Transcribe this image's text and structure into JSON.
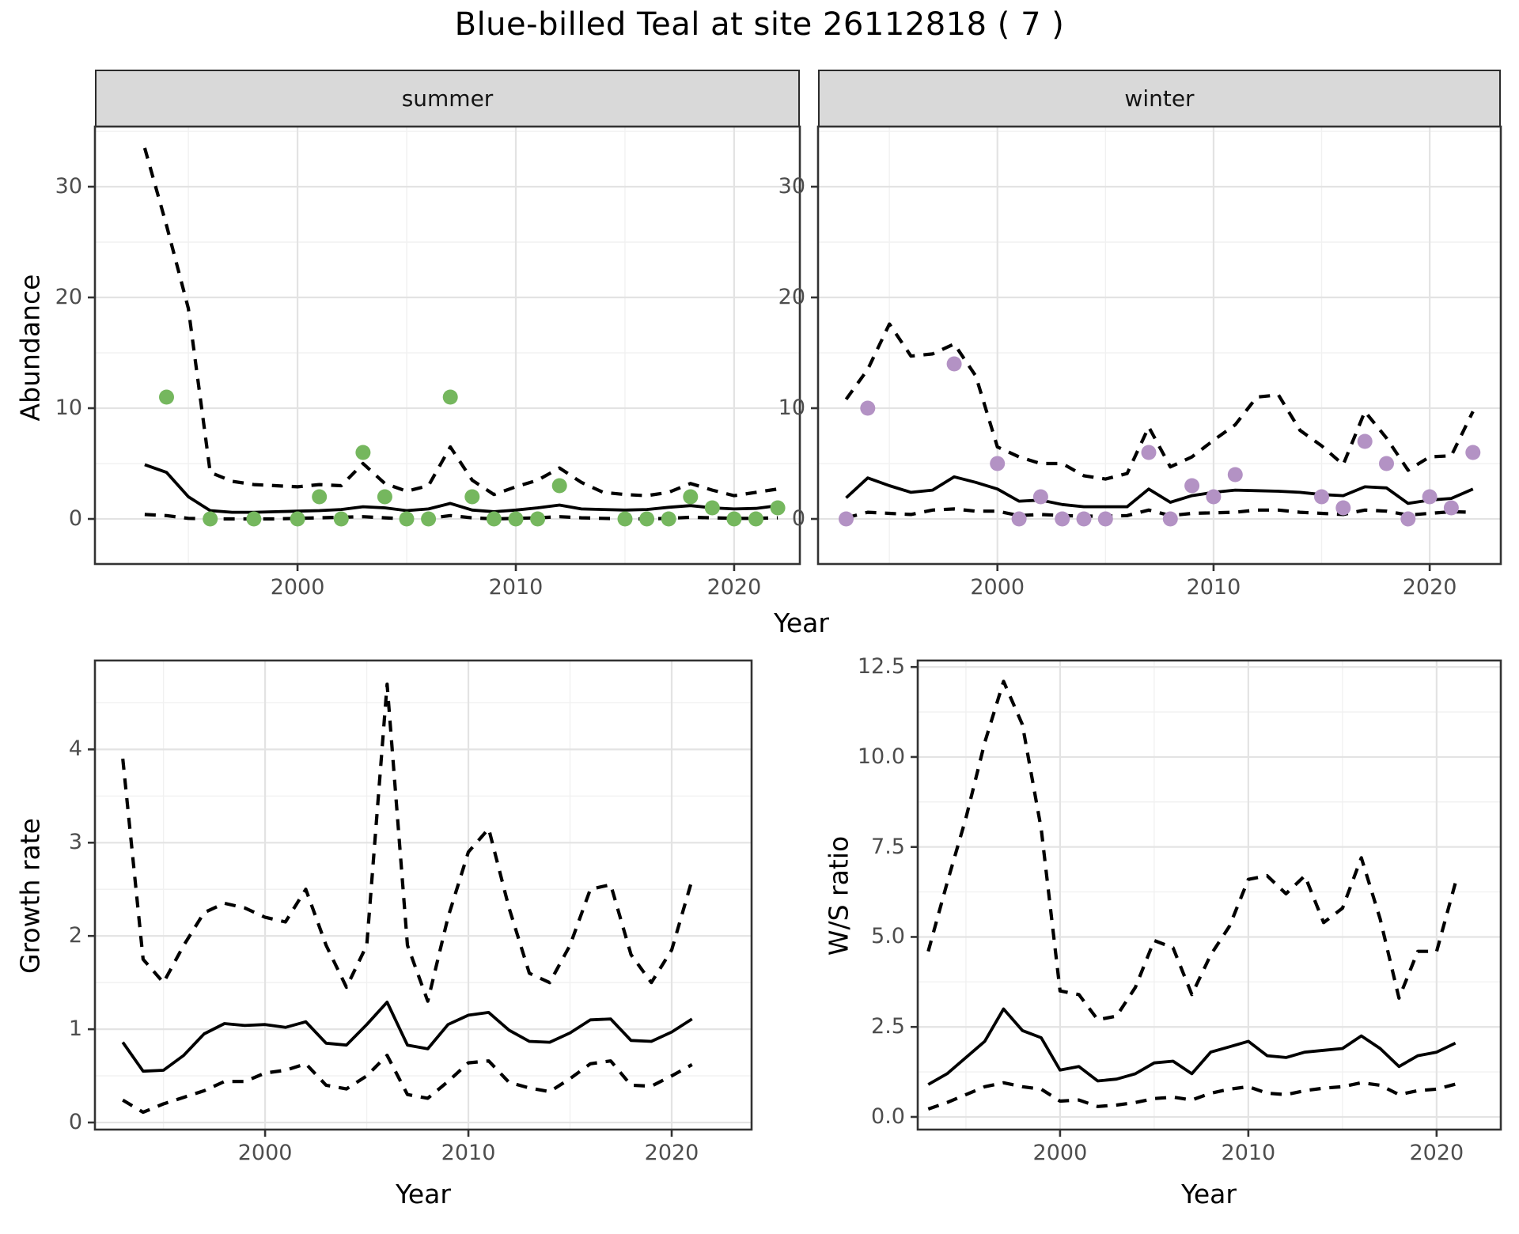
{
  "title": "Blue-billed Teal at site 26112818 ( 7 )",
  "facets": {
    "summer": "summer",
    "winter": "winter"
  },
  "axis_labels": {
    "abundance": "Abundance",
    "year_top": "Year",
    "year_growth": "Year",
    "year_ws": "Year",
    "growth_rate": "Growth rate",
    "ws_ratio": "W/S ratio"
  },
  "colors": {
    "summer_point": "#75b75e",
    "winter_point": "#b392c4",
    "line": "#000000",
    "strip_bg": "#d9d9d9",
    "grid_major": "#e3e3e3",
    "grid_minor": "#f1f1f1",
    "axis_text": "#4d4d4d",
    "panel_border": "#333333"
  },
  "chart_data": [
    {
      "id": "abundance-summer",
      "type": "line",
      "facet": "summer",
      "ylabel": "Abundance",
      "xlabel": "Year",
      "x": [
        1993,
        1994,
        1995,
        1996,
        1997,
        1998,
        1999,
        2000,
        2001,
        2002,
        2003,
        2004,
        2005,
        2006,
        2007,
        2008,
        2009,
        2010,
        2011,
        2012,
        2013,
        2014,
        2015,
        2016,
        2017,
        2018,
        2019,
        2020,
        2021,
        2022
      ],
      "series": [
        {
          "name": "mean",
          "style": "solid",
          "values": [
            4.9,
            4.2,
            2.0,
            0.75,
            0.6,
            0.6,
            0.65,
            0.7,
            0.75,
            0.85,
            1.1,
            1.0,
            0.75,
            0.9,
            1.4,
            0.8,
            0.65,
            0.8,
            1.0,
            1.25,
            0.9,
            0.85,
            0.8,
            0.85,
            1.05,
            1.2,
            1.0,
            0.9,
            0.95,
            1.2
          ]
        },
        {
          "name": "upper_ci",
          "style": "dashed",
          "values": [
            33.5,
            26.5,
            19.0,
            4.2,
            3.4,
            3.1,
            3.0,
            2.9,
            3.1,
            3.0,
            5.0,
            3.2,
            2.5,
            3.0,
            6.5,
            3.5,
            2.2,
            2.9,
            3.5,
            4.6,
            3.3,
            2.4,
            2.2,
            2.1,
            2.4,
            3.2,
            2.6,
            2.1,
            2.4,
            2.7
          ]
        },
        {
          "name": "lower_ci",
          "style": "dashed",
          "values": [
            0.4,
            0.3,
            0.05,
            0,
            0,
            0,
            0,
            0.05,
            0.1,
            0.15,
            0.2,
            0.1,
            0,
            0.05,
            0.3,
            0.1,
            0,
            0.05,
            0.1,
            0.2,
            0.1,
            0.05,
            0,
            0,
            0.05,
            0.15,
            0.1,
            0.05,
            0.05,
            0.1
          ]
        }
      ],
      "points": {
        "name": "observed-counts-summer",
        "color": "#75b75e",
        "x": [
          1994,
          1996,
          1998,
          2000,
          2001,
          2002,
          2003,
          2004,
          2005,
          2006,
          2007,
          2008,
          2009,
          2010,
          2011,
          2012,
          2015,
          2016,
          2017,
          2018,
          2019,
          2020,
          2021,
          2022
        ],
        "y": [
          11,
          0,
          0,
          0,
          2,
          0,
          6,
          2,
          0,
          0,
          11,
          2,
          0,
          0,
          0,
          3,
          0,
          0,
          0,
          2,
          1,
          0,
          0,
          1
        ]
      },
      "x_ticks": [
        2000,
        2010,
        2020
      ],
      "x_minor": [
        1995,
        2005,
        2015
      ],
      "y_ticks": [
        0,
        10,
        20,
        30
      ],
      "y_tick_labels": [
        "0",
        "10",
        "20",
        "30"
      ],
      "y_minor": [
        5,
        15,
        25,
        35
      ],
      "xlim": [
        1990.72,
        2023.01
      ],
      "ylim": [
        -4.07,
        35.43
      ]
    },
    {
      "id": "abundance-winter",
      "type": "line",
      "facet": "winter",
      "ylabel": "Abundance",
      "xlabel": "Year",
      "x": [
        1993,
        1994,
        1995,
        1996,
        1997,
        1998,
        1999,
        2000,
        2001,
        2002,
        2003,
        2004,
        2005,
        2006,
        2007,
        2008,
        2009,
        2010,
        2011,
        2012,
        2013,
        2014,
        2015,
        2016,
        2017,
        2018,
        2019,
        2020,
        2021,
        2022
      ],
      "series": [
        {
          "name": "mean",
          "style": "solid",
          "values": [
            1.9,
            3.7,
            3.0,
            2.4,
            2.6,
            3.8,
            3.3,
            2.7,
            1.6,
            1.7,
            1.3,
            1.1,
            1.1,
            1.1,
            2.7,
            1.5,
            2.1,
            2.4,
            2.6,
            2.55,
            2.5,
            2.4,
            2.2,
            2.1,
            2.9,
            2.8,
            1.4,
            1.7,
            1.85,
            2.7
          ]
        },
        {
          "name": "upper_ci",
          "style": "dashed",
          "values": [
            10.8,
            13.5,
            17.6,
            14.7,
            14.9,
            15.8,
            12.9,
            6.5,
            5.6,
            5.0,
            5.0,
            3.9,
            3.6,
            4.1,
            8.3,
            4.7,
            5.6,
            7.1,
            8.5,
            11.0,
            11.2,
            8.0,
            6.6,
            4.9,
            9.7,
            7.3,
            4.4,
            5.6,
            5.7,
            9.7
          ]
        },
        {
          "name": "lower_ci",
          "style": "dashed",
          "values": [
            0.1,
            0.6,
            0.5,
            0.4,
            0.8,
            0.9,
            0.7,
            0.7,
            0.3,
            0.4,
            0.3,
            0.25,
            0.25,
            0.3,
            0.8,
            0.3,
            0.5,
            0.55,
            0.6,
            0.8,
            0.8,
            0.6,
            0.5,
            0.4,
            0.8,
            0.7,
            0.35,
            0.5,
            0.65,
            0.6
          ]
        }
      ],
      "points": {
        "name": "observed-counts-winter",
        "color": "#b392c4",
        "x": [
          1993,
          1994,
          1998,
          2000,
          2001,
          2002,
          2003,
          2004,
          2005,
          2007,
          2008,
          2009,
          2010,
          2011,
          2015,
          2016,
          2017,
          2018,
          2019,
          2020,
          2021,
          2022
        ],
        "y": [
          0,
          10,
          14,
          5,
          0,
          2,
          0,
          0,
          0,
          6,
          0,
          3,
          2,
          4,
          2,
          1,
          7,
          5,
          0,
          2,
          1,
          6
        ]
      },
      "x_ticks": [
        2000,
        2010,
        2020
      ],
      "x_minor": [
        1995,
        2005,
        2015
      ],
      "y_ticks": [
        0,
        10,
        20,
        30
      ],
      "y_tick_labels": [
        "0",
        "10",
        "20",
        "30"
      ],
      "y_minor": [
        5,
        15,
        25,
        35
      ],
      "xlim": [
        1991.7,
        2023.29
      ],
      "ylim": [
        -4.07,
        35.43
      ]
    },
    {
      "id": "growth-rate",
      "type": "line",
      "facet": null,
      "ylabel": "Growth rate",
      "xlabel": "Year",
      "x": [
        1993,
        1994,
        1995,
        1996,
        1997,
        1998,
        1999,
        2000,
        2001,
        2002,
        2003,
        2004,
        2005,
        2006,
        2007,
        2008,
        2009,
        2010,
        2011,
        2012,
        2013,
        2014,
        2015,
        2016,
        2017,
        2018,
        2019,
        2020,
        2021
      ],
      "series": [
        {
          "name": "mean",
          "style": "solid",
          "values": [
            0.86,
            0.55,
            0.56,
            0.72,
            0.95,
            1.06,
            1.04,
            1.05,
            1.02,
            1.08,
            0.85,
            0.83,
            1.05,
            1.29,
            0.83,
            0.79,
            1.05,
            1.15,
            1.18,
            0.99,
            0.87,
            0.86,
            0.96,
            1.1,
            1.11,
            0.88,
            0.87,
            0.97,
            1.11
          ]
        },
        {
          "name": "upper_ci",
          "style": "dashed",
          "values": [
            3.9,
            1.75,
            1.5,
            1.9,
            2.25,
            2.35,
            2.3,
            2.2,
            2.15,
            2.5,
            1.9,
            1.45,
            1.9,
            4.7,
            1.9,
            1.3,
            2.2,
            2.9,
            3.15,
            2.3,
            1.6,
            1.5,
            1.9,
            2.5,
            2.55,
            1.8,
            1.5,
            1.85,
            2.6
          ]
        },
        {
          "name": "lower_ci",
          "style": "dashed",
          "values": [
            0.24,
            0.11,
            0.2,
            0.27,
            0.34,
            0.44,
            0.44,
            0.53,
            0.56,
            0.63,
            0.4,
            0.36,
            0.5,
            0.72,
            0.3,
            0.26,
            0.44,
            0.64,
            0.66,
            0.43,
            0.37,
            0.33,
            0.47,
            0.63,
            0.66,
            0.4,
            0.39,
            0.5,
            0.62
          ]
        }
      ],
      "points": null,
      "x_ticks": [
        2000,
        2010,
        2020
      ],
      "x_minor": [
        1995,
        2005,
        2015
      ],
      "y_ticks": [
        0,
        1,
        2,
        3,
        4
      ],
      "y_tick_labels": [
        "0",
        "1",
        "2",
        "3",
        "4"
      ],
      "y_minor": [
        0.5,
        1.5,
        2.5,
        3.5,
        4.5
      ],
      "xlim": [
        1991.63,
        2023.93
      ],
      "ylim": [
        -0.076,
        4.953
      ]
    },
    {
      "id": "ws-ratio",
      "type": "line",
      "facet": null,
      "ylabel": "W/S ratio",
      "xlabel": "Year",
      "x": [
        1993,
        1994,
        1995,
        1996,
        1997,
        1998,
        1999,
        2000,
        2001,
        2002,
        2003,
        2004,
        2005,
        2006,
        2007,
        2008,
        2009,
        2010,
        2011,
        2012,
        2013,
        2014,
        2015,
        2016,
        2017,
        2018,
        2019,
        2020,
        2021
      ],
      "series": [
        {
          "name": "mean",
          "style": "solid",
          "values": [
            0.9,
            1.2,
            1.65,
            2.1,
            3.0,
            2.4,
            2.2,
            1.3,
            1.4,
            1.0,
            1.05,
            1.2,
            1.5,
            1.55,
            1.2,
            1.8,
            1.95,
            2.1,
            1.7,
            1.65,
            1.8,
            1.85,
            1.9,
            2.25,
            1.9,
            1.4,
            1.7,
            1.8,
            2.05
          ]
        },
        {
          "name": "upper_ci",
          "style": "dashed",
          "values": [
            4.6,
            6.5,
            8.3,
            10.4,
            12.1,
            10.9,
            8.0,
            3.5,
            3.4,
            2.7,
            2.8,
            3.6,
            4.9,
            4.7,
            3.4,
            4.5,
            5.3,
            6.6,
            6.7,
            6.2,
            6.7,
            5.4,
            5.8,
            7.2,
            5.5,
            3.3,
            4.6,
            4.6,
            6.5
          ]
        },
        {
          "name": "lower_ci",
          "style": "dashed",
          "values": [
            0.22,
            0.4,
            0.62,
            0.84,
            0.95,
            0.84,
            0.77,
            0.44,
            0.47,
            0.29,
            0.33,
            0.4,
            0.51,
            0.55,
            0.47,
            0.66,
            0.77,
            0.84,
            0.66,
            0.62,
            0.73,
            0.8,
            0.84,
            0.95,
            0.88,
            0.62,
            0.73,
            0.77,
            0.91
          ]
        }
      ],
      "points": null,
      "x_ticks": [
        2000,
        2010,
        2020
      ],
      "x_minor": [
        1995,
        2005,
        2015
      ],
      "y_ticks": [
        0,
        2.5,
        5,
        7.5,
        10,
        12.5
      ],
      "y_tick_labels": [
        "0.0",
        "2.5",
        "5.0",
        "7.5",
        "10.0",
        "12.5"
      ],
      "y_minor": [
        1.25,
        3.75,
        6.25,
        8.75,
        11.25
      ],
      "xlim": [
        1992.44,
        2023.41
      ],
      "ylim": [
        -0.352,
        12.68
      ]
    }
  ]
}
